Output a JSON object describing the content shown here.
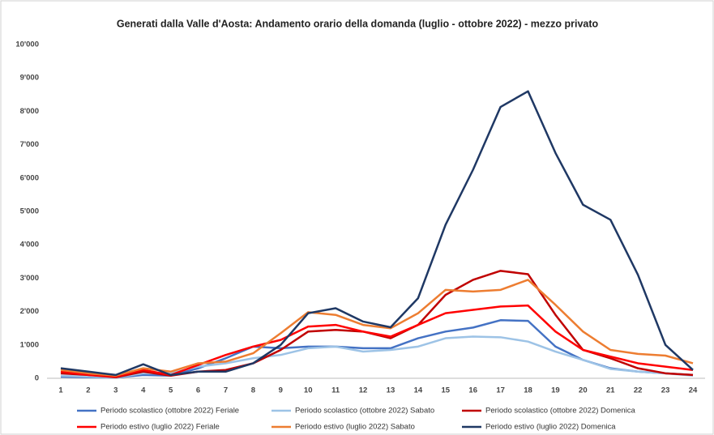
{
  "chart_data": {
    "type": "line",
    "title": "Generati dalla Valle d'Aosta: Andamento orario della domanda (luglio - ottobre 2022) - mezzo privato",
    "categories": [
      "1",
      "2",
      "3",
      "4",
      "5",
      "6",
      "7",
      "8",
      "9",
      "10",
      "11",
      "12",
      "13",
      "14",
      "15",
      "16",
      "17",
      "18",
      "19",
      "20",
      "21",
      "22",
      "23",
      "24"
    ],
    "series": [
      {
        "name": "Periodo scolastico (ottobre 2022) Feriale",
        "color": "#4472c4",
        "values": [
          50,
          30,
          20,
          100,
          80,
          300,
          600,
          950,
          900,
          950,
          950,
          900,
          900,
          1200,
          1400,
          1520,
          1740,
          1720,
          950,
          550,
          300,
          200,
          150,
          100
        ]
      },
      {
        "name": "Periodo scolastico (ottobre 2022) Sabato",
        "color": "#9dc3e6",
        "values": [
          80,
          50,
          20,
          150,
          150,
          350,
          450,
          600,
          700,
          900,
          950,
          800,
          850,
          950,
          1200,
          1250,
          1230,
          1100,
          800,
          550,
          280,
          200,
          150,
          80
        ]
      },
      {
        "name": "Periodo scolastico (ottobre 2022) Domenica",
        "color": "#c00000",
        "values": [
          150,
          100,
          30,
          200,
          80,
          200,
          250,
          450,
          850,
          1400,
          1450,
          1400,
          1200,
          1600,
          2500,
          2950,
          3220,
          3120,
          1900,
          850,
          600,
          300,
          150,
          100
        ]
      },
      {
        "name": "Periodo estivo (luglio 2022) Feriale",
        "color": "#ff0000",
        "values": [
          200,
          100,
          50,
          250,
          100,
          400,
          700,
          950,
          1150,
          1550,
          1600,
          1400,
          1250,
          1600,
          1950,
          2050,
          2150,
          2180,
          1400,
          850,
          650,
          450,
          350,
          250
        ]
      },
      {
        "name": "Periodo estivo (luglio 2022) Sabato",
        "color": "#ed7d31",
        "values": [
          250,
          150,
          80,
          300,
          200,
          450,
          500,
          750,
          1350,
          1980,
          1900,
          1600,
          1500,
          1950,
          2650,
          2600,
          2650,
          2950,
          2200,
          1400,
          850,
          730,
          680,
          450
        ]
      },
      {
        "name": "Periodo estivo (luglio 2022) Domenica",
        "color": "#1f3864",
        "values": [
          300,
          200,
          100,
          420,
          100,
          200,
          200,
          450,
          1000,
          1950,
          2100,
          1700,
          1530,
          2400,
          4600,
          6250,
          8130,
          8600,
          6750,
          5200,
          4750,
          3100,
          1000,
          250
        ]
      }
    ],
    "ylim": [
      0,
      10000
    ],
    "yticks": [
      0,
      {
        "value": 1000,
        "label": "1'000"
      },
      {
        "value": 2000,
        "label": "2'000"
      },
      {
        "value": 3000,
        "label": "3'000"
      },
      {
        "value": 4000,
        "label": "4'000"
      },
      {
        "value": 5000,
        "label": "5'000"
      },
      {
        "value": 6000,
        "label": "6'000"
      },
      {
        "value": 7000,
        "label": "7'000"
      },
      {
        "value": 8000,
        "label": "8'000"
      },
      {
        "value": 9000,
        "label": "9'000"
      },
      {
        "value": 10000,
        "label": "10'000"
      }
    ],
    "grid": false
  }
}
